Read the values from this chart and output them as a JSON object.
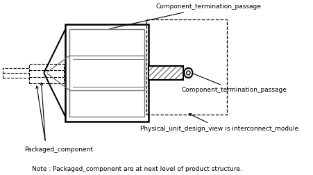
{
  "bg_color": "#ffffff",
  "line_color": "#000000",
  "gray_color": "#777777",
  "label_ctp_top": "Component_termination_passage",
  "label_ctp_right": "Component_termination_passage",
  "label_pud": "Physical_unit_design_view is interconnect_module",
  "label_pc": "Packaged_component",
  "note_text": "Note : Packaged_component are at next level of product structure.",
  "figsize": [
    4.52,
    2.52
  ],
  "dpi": 100
}
